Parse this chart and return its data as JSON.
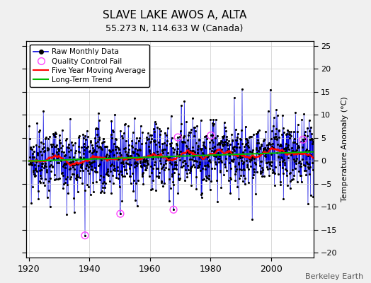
{
  "title": "SLAVE LAKE AWOS A, ALTA",
  "subtitle": "55.273 N, 114.633 W (Canada)",
  "ylabel": "Temperature Anomaly (°C)",
  "credit": "Berkeley Earth",
  "xlim": [
    1919,
    2014
  ],
  "ylim": [
    -21,
    26
  ],
  "yticks": [
    -20,
    -15,
    -10,
    -5,
    0,
    5,
    10,
    15,
    20,
    25
  ],
  "xticks": [
    1920,
    1940,
    1960,
    1980,
    2000
  ],
  "bg_color": "#f0f0f0",
  "plot_bg_color": "#ffffff",
  "stem_color": "#aaaaff",
  "line_color": "#0000dd",
  "dot_color": "#000000",
  "ma_color": "#ff0000",
  "trend_color": "#00bb00",
  "qc_color": "#ff44ff",
  "seed": 99,
  "start_year": 1920,
  "end_year": 2013,
  "months_per_year": 12,
  "qc_fail_years": [
    1938.5,
    1950.2,
    1967.8,
    1969.2,
    1980.1,
    2010.5
  ],
  "qc_fail_values": [
    -16.2,
    -11.5,
    -10.6,
    5.1,
    5.5,
    4.6
  ]
}
